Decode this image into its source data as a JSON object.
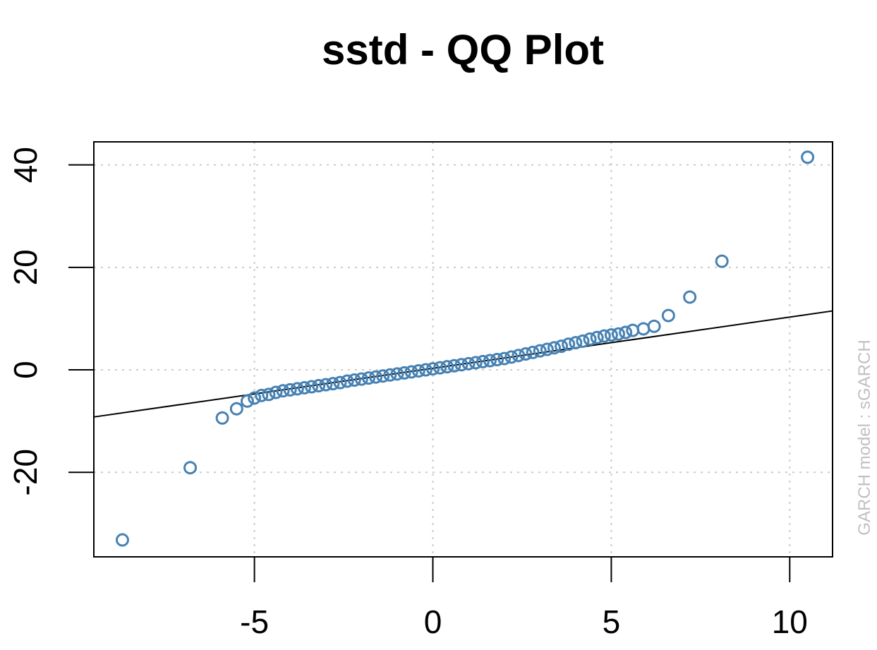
{
  "chart_data": {
    "type": "scatter",
    "title": "sstd - QQ Plot",
    "xlabel": "",
    "ylabel": "",
    "side_label": "GARCH model :  sGARCH",
    "xlim": [
      -9.5,
      11.2
    ],
    "ylim": [
      -36.5,
      44.5
    ],
    "x_ticks": [
      -5,
      0,
      5,
      10
    ],
    "x_tick_labels": [
      "-5",
      "0",
      "5",
      "10"
    ],
    "y_ticks": [
      -20,
      0,
      20,
      40
    ],
    "y_tick_labels": [
      "-20",
      "0",
      "20",
      "40"
    ],
    "grid": true,
    "reference_line": {
      "intercept": 0.3,
      "slope": 1.0
    },
    "colors": {
      "points": "#4682B4",
      "line": "#000000",
      "grid": "#cccccc",
      "side_label": "#c0c0c0"
    },
    "points": [
      {
        "x": -8.7,
        "y": -33.2
      },
      {
        "x": -6.8,
        "y": -19.1
      },
      {
        "x": -5.9,
        "y": -9.4
      },
      {
        "x": -5.5,
        "y": -7.6
      },
      {
        "x": -5.2,
        "y": -6.1
      },
      {
        "x": -5.0,
        "y": -5.5
      },
      {
        "x": -4.8,
        "y": -5.0
      },
      {
        "x": -4.6,
        "y": -4.8
      },
      {
        "x": -4.4,
        "y": -4.4
      },
      {
        "x": -4.2,
        "y": -4.1
      },
      {
        "x": -4.0,
        "y": -3.9
      },
      {
        "x": -3.8,
        "y": -3.7
      },
      {
        "x": -3.6,
        "y": -3.5
      },
      {
        "x": -3.4,
        "y": -3.3
      },
      {
        "x": -3.2,
        "y": -3.1
      },
      {
        "x": -3.0,
        "y": -2.9
      },
      {
        "x": -2.8,
        "y": -2.7
      },
      {
        "x": -2.6,
        "y": -2.5
      },
      {
        "x": -2.4,
        "y": -2.2
      },
      {
        "x": -2.2,
        "y": -2.0
      },
      {
        "x": -2.0,
        "y": -1.8
      },
      {
        "x": -1.8,
        "y": -1.6
      },
      {
        "x": -1.6,
        "y": -1.4
      },
      {
        "x": -1.4,
        "y": -1.2
      },
      {
        "x": -1.2,
        "y": -1.0
      },
      {
        "x": -1.0,
        "y": -0.8
      },
      {
        "x": -0.8,
        "y": -0.6
      },
      {
        "x": -0.6,
        "y": -0.4
      },
      {
        "x": -0.4,
        "y": -0.2
      },
      {
        "x": -0.2,
        "y": 0.0
      },
      {
        "x": 0.0,
        "y": 0.2
      },
      {
        "x": 0.2,
        "y": 0.4
      },
      {
        "x": 0.4,
        "y": 0.6
      },
      {
        "x": 0.6,
        "y": 0.8
      },
      {
        "x": 0.8,
        "y": 1.0
      },
      {
        "x": 1.0,
        "y": 1.2
      },
      {
        "x": 1.2,
        "y": 1.4
      },
      {
        "x": 1.4,
        "y": 1.6
      },
      {
        "x": 1.6,
        "y": 1.8
      },
      {
        "x": 1.8,
        "y": 2.0
      },
      {
        "x": 2.0,
        "y": 2.2
      },
      {
        "x": 2.2,
        "y": 2.5
      },
      {
        "x": 2.4,
        "y": 2.8
      },
      {
        "x": 2.6,
        "y": 3.1
      },
      {
        "x": 2.8,
        "y": 3.4
      },
      {
        "x": 3.0,
        "y": 3.7
      },
      {
        "x": 3.2,
        "y": 4.0
      },
      {
        "x": 3.4,
        "y": 4.3
      },
      {
        "x": 3.6,
        "y": 4.6
      },
      {
        "x": 3.8,
        "y": 5.0
      },
      {
        "x": 4.0,
        "y": 5.3
      },
      {
        "x": 4.2,
        "y": 5.6
      },
      {
        "x": 4.4,
        "y": 6.0
      },
      {
        "x": 4.6,
        "y": 6.3
      },
      {
        "x": 4.8,
        "y": 6.6
      },
      {
        "x": 5.0,
        "y": 6.8
      },
      {
        "x": 5.2,
        "y": 7.0
      },
      {
        "x": 5.4,
        "y": 7.3
      },
      {
        "x": 5.6,
        "y": 7.7
      },
      {
        "x": 5.9,
        "y": 8.0
      },
      {
        "x": 6.2,
        "y": 8.5
      },
      {
        "x": 6.6,
        "y": 10.6
      },
      {
        "x": 7.2,
        "y": 14.2
      },
      {
        "x": 8.1,
        "y": 21.2
      },
      {
        "x": 10.5,
        "y": 41.5
      }
    ]
  }
}
